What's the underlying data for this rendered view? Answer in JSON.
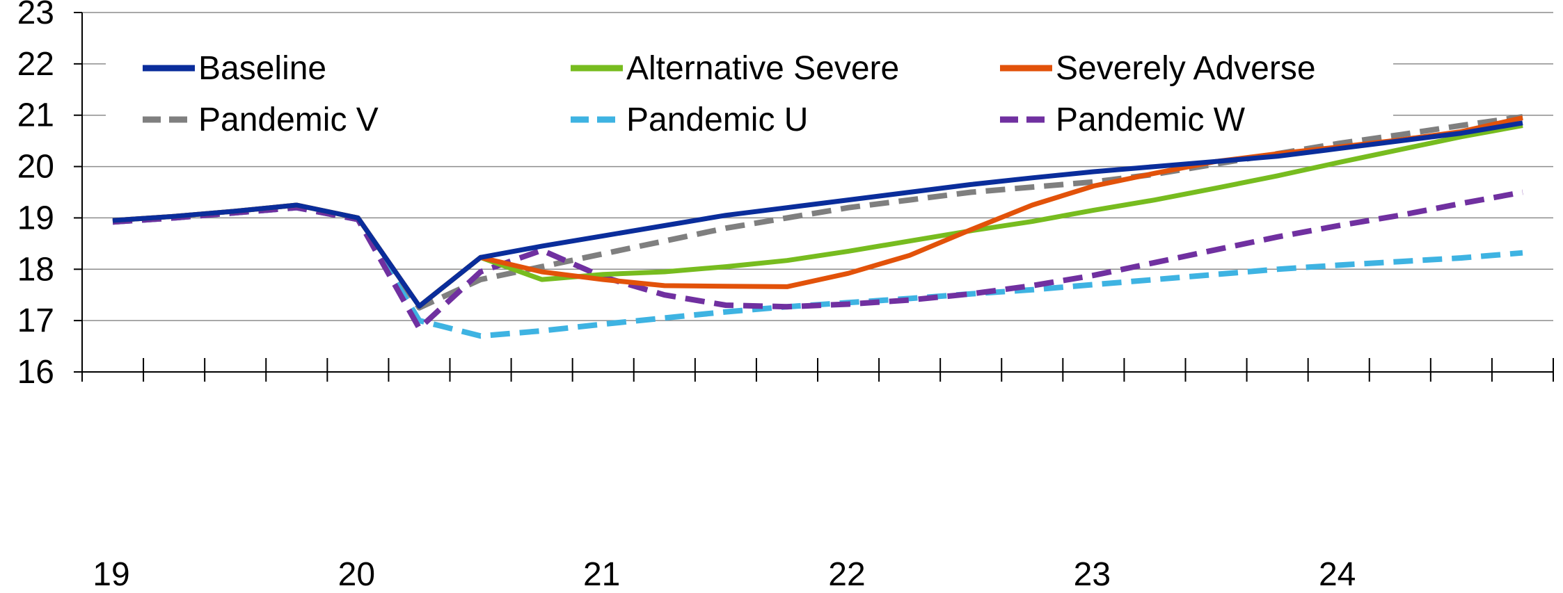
{
  "chart_data": {
    "type": "line",
    "title": "",
    "xlabel": "",
    "ylabel": "",
    "ylim": [
      16,
      23
    ],
    "yticks": [
      "16",
      "17",
      "18",
      "19",
      "20",
      "21",
      "22",
      "23"
    ],
    "xtick_labels": [
      "19",
      "20",
      "21",
      "22",
      "23",
      "24"
    ],
    "x": [
      "2019Q1",
      "2019Q2",
      "2019Q3",
      "2019Q4",
      "2020Q1",
      "2020Q2",
      "2020Q3",
      "2020Q4",
      "2021Q1",
      "2021Q2",
      "2021Q3",
      "2021Q4",
      "2022Q1",
      "2022Q2",
      "2022Q3",
      "2022Q4",
      "2023Q1",
      "2023Q2",
      "2023Q3",
      "2023Q4",
      "2024Q1",
      "2024Q2",
      "2024Q3",
      "2024Q4"
    ],
    "grid": "horizontal",
    "legend_position": "top",
    "series": [
      {
        "name": "Baseline",
        "color": "#0a2d9b",
        "style": "solid",
        "values": [
          18.95,
          19.03,
          19.13,
          19.25,
          19.0,
          17.28,
          18.23,
          18.45,
          18.65,
          18.85,
          19.05,
          19.2,
          19.35,
          19.5,
          19.65,
          19.78,
          19.9,
          20.0,
          20.1,
          20.2,
          20.35,
          20.5,
          20.65,
          20.85
        ]
      },
      {
        "name": "Alternative Severe",
        "color": "#77bc1f",
        "style": "solid",
        "values": [
          18.95,
          19.03,
          19.13,
          19.25,
          19.0,
          17.28,
          18.23,
          17.8,
          17.9,
          17.95,
          18.05,
          18.17,
          18.35,
          18.55,
          18.75,
          18.93,
          19.15,
          19.35,
          19.58,
          19.82,
          20.08,
          20.33,
          20.58,
          20.8
        ]
      },
      {
        "name": "Severely Adverse",
        "color": "#e2520a",
        "style": "solid",
        "values": [
          18.95,
          19.03,
          19.13,
          19.25,
          19.0,
          17.28,
          18.23,
          17.95,
          17.8,
          17.68,
          17.67,
          17.66,
          17.92,
          18.27,
          18.77,
          19.25,
          19.62,
          19.87,
          20.1,
          20.25,
          20.38,
          20.52,
          20.68,
          20.95
        ]
      },
      {
        "name": "Pandemic V",
        "color": "#7f7f7f",
        "style": "dashed",
        "values": [
          18.92,
          19.0,
          19.1,
          19.2,
          18.97,
          17.25,
          17.8,
          18.05,
          18.3,
          18.55,
          18.8,
          19.0,
          19.2,
          19.35,
          19.5,
          19.6,
          19.7,
          19.85,
          20.05,
          20.25,
          20.45,
          20.62,
          20.8,
          20.97
        ]
      },
      {
        "name": "Pandemic U",
        "color": "#3eb3e2",
        "style": "dashed",
        "values": [
          18.92,
          19.0,
          19.1,
          19.2,
          18.97,
          17.0,
          16.7,
          16.8,
          16.93,
          17.05,
          17.17,
          17.27,
          17.35,
          17.43,
          17.52,
          17.6,
          17.7,
          17.8,
          17.9,
          18.0,
          18.08,
          18.15,
          18.22,
          18.32
        ]
      },
      {
        "name": "Pandemic W",
        "color": "#7030a0",
        "style": "dashed",
        "values": [
          18.92,
          19.0,
          19.1,
          19.2,
          18.97,
          16.85,
          17.95,
          18.37,
          17.85,
          17.5,
          17.3,
          17.27,
          17.32,
          17.4,
          17.52,
          17.68,
          17.88,
          18.13,
          18.38,
          18.63,
          18.85,
          19.05,
          19.28,
          19.5
        ]
      }
    ]
  }
}
